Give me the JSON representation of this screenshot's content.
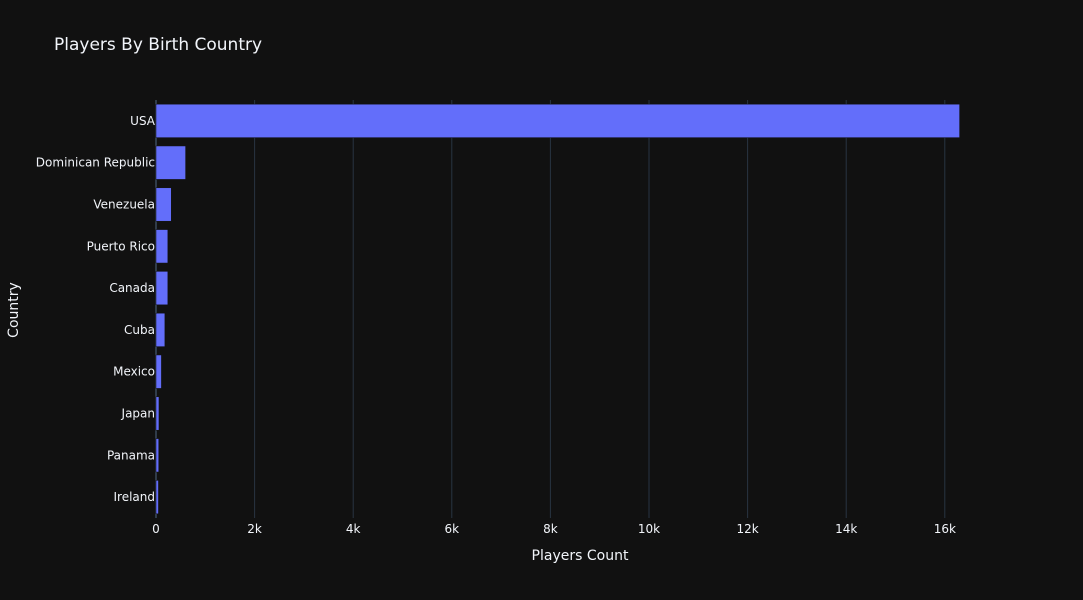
{
  "chart_data": {
    "type": "bar",
    "orientation": "horizontal",
    "title": "Players By Birth Country",
    "xlabel": "Players Count",
    "ylabel": "Country",
    "categories": [
      "USA",
      "Dominican Republic",
      "Venezuela",
      "Puerto Rico",
      "Canada",
      "Cuba",
      "Mexico",
      "Japan",
      "Panama",
      "Ireland"
    ],
    "values": [
      16300,
      600,
      310,
      240,
      240,
      180,
      110,
      60,
      55,
      50
    ],
    "xlim": [
      0,
      16500
    ],
    "xticks": [
      0,
      2000,
      4000,
      6000,
      8000,
      10000,
      12000,
      14000,
      16000
    ],
    "xtick_labels": [
      "0",
      "2k",
      "4k",
      "6k",
      "8k",
      "10k",
      "12k",
      "14k",
      "16k"
    ],
    "grid": "vertical",
    "colors": {
      "background": "#111111",
      "bar": "#636efa",
      "grid": "#283442",
      "text": "#f2f5fa"
    }
  }
}
